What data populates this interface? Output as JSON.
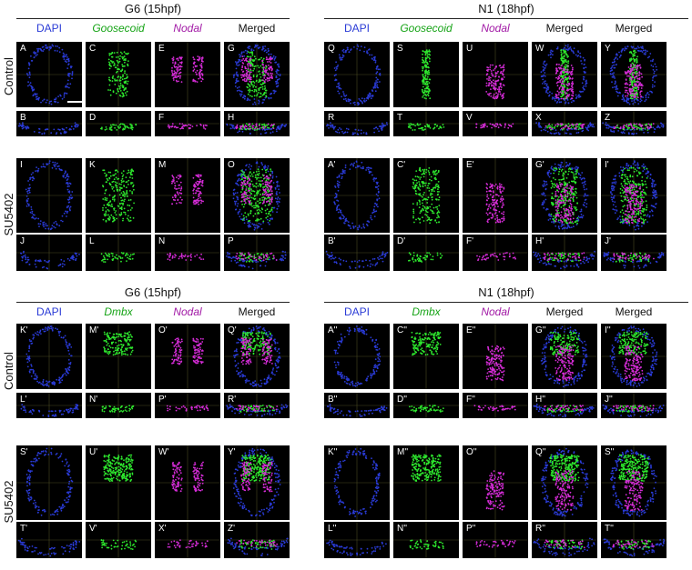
{
  "blocks": [
    {
      "stage": "G6 (15hpf)",
      "columns": [
        {
          "text": "DAPI",
          "color": "dapi"
        },
        {
          "text": "Goosecoid",
          "color": "green"
        },
        {
          "text": "Nodal",
          "color": "magenta"
        },
        {
          "text": "Merged",
          "color": "black"
        }
      ],
      "rows": [
        {
          "name": "Control",
          "panels": [
            [
              "A",
              "C",
              "E",
              "G"
            ],
            [
              "B",
              "D",
              "F",
              "H"
            ]
          ]
        },
        {
          "name": "SU5402",
          "panels": [
            [
              "I",
              "K",
              "M",
              "O"
            ],
            [
              "J",
              "L",
              "N",
              "P"
            ]
          ]
        }
      ]
    },
    {
      "stage": "N1 (18hpf)",
      "columns": [
        {
          "text": "DAPI",
          "color": "dapi"
        },
        {
          "text": "Goosecoid",
          "color": "green"
        },
        {
          "text": "Nodal",
          "color": "magenta"
        },
        {
          "text": "Merged",
          "color": "black"
        },
        {
          "text": "Merged",
          "color": "black"
        }
      ],
      "rows": [
        {
          "name": "",
          "panels": [
            [
              "Q",
              "S",
              "U",
              "W",
              "Y"
            ],
            [
              "R",
              "T",
              "V",
              "X",
              "Z"
            ]
          ]
        },
        {
          "name": "",
          "panels": [
            [
              "A'",
              "C'",
              "E'",
              "G'",
              "I'"
            ],
            [
              "B'",
              "D'",
              "F'",
              "H'",
              "J'"
            ]
          ]
        }
      ]
    },
    {
      "stage": "G6 (15hpf)",
      "columns": [
        {
          "text": "DAPI",
          "color": "dapi"
        },
        {
          "text": "Dmbx",
          "color": "green"
        },
        {
          "text": "Nodal",
          "color": "magenta"
        },
        {
          "text": "Merged",
          "color": "black"
        }
      ],
      "rows": [
        {
          "name": "Control",
          "panels": [
            [
              "K'",
              "M'",
              "O'",
              "Q'"
            ],
            [
              "L'",
              "N'",
              "P'",
              "R'"
            ]
          ]
        },
        {
          "name": "SU5402",
          "panels": [
            [
              "S'",
              "U'",
              "W'",
              "Y'"
            ],
            [
              "T'",
              "V'",
              "X'",
              "Z'"
            ]
          ]
        }
      ]
    },
    {
      "stage": "N1 (18hpf)",
      "columns": [
        {
          "text": "DAPI",
          "color": "dapi"
        },
        {
          "text": "Dmbx",
          "color": "green"
        },
        {
          "text": "Nodal",
          "color": "magenta"
        },
        {
          "text": "Merged",
          "color": "black"
        },
        {
          "text": "Merged",
          "color": "black"
        }
      ],
      "rows": [
        {
          "name": "",
          "panels": [
            [
              "A''",
              "C''",
              "E''",
              "G''",
              "I''"
            ],
            [
              "B''",
              "D''",
              "F''",
              "H''",
              "J''"
            ]
          ]
        },
        {
          "name": "",
          "panels": [
            [
              "K''",
              "M''",
              "O''",
              "Q''",
              "S''"
            ],
            [
              "L''",
              "N''",
              "P''",
              "R''",
              "T''"
            ]
          ]
        }
      ]
    }
  ],
  "colors": {
    "dapi": "#2a3bd6",
    "green": "#2ee82e",
    "magenta": "#d62cd8",
    "panel_bg": "#000000",
    "arrowhead": "#ffffff"
  }
}
